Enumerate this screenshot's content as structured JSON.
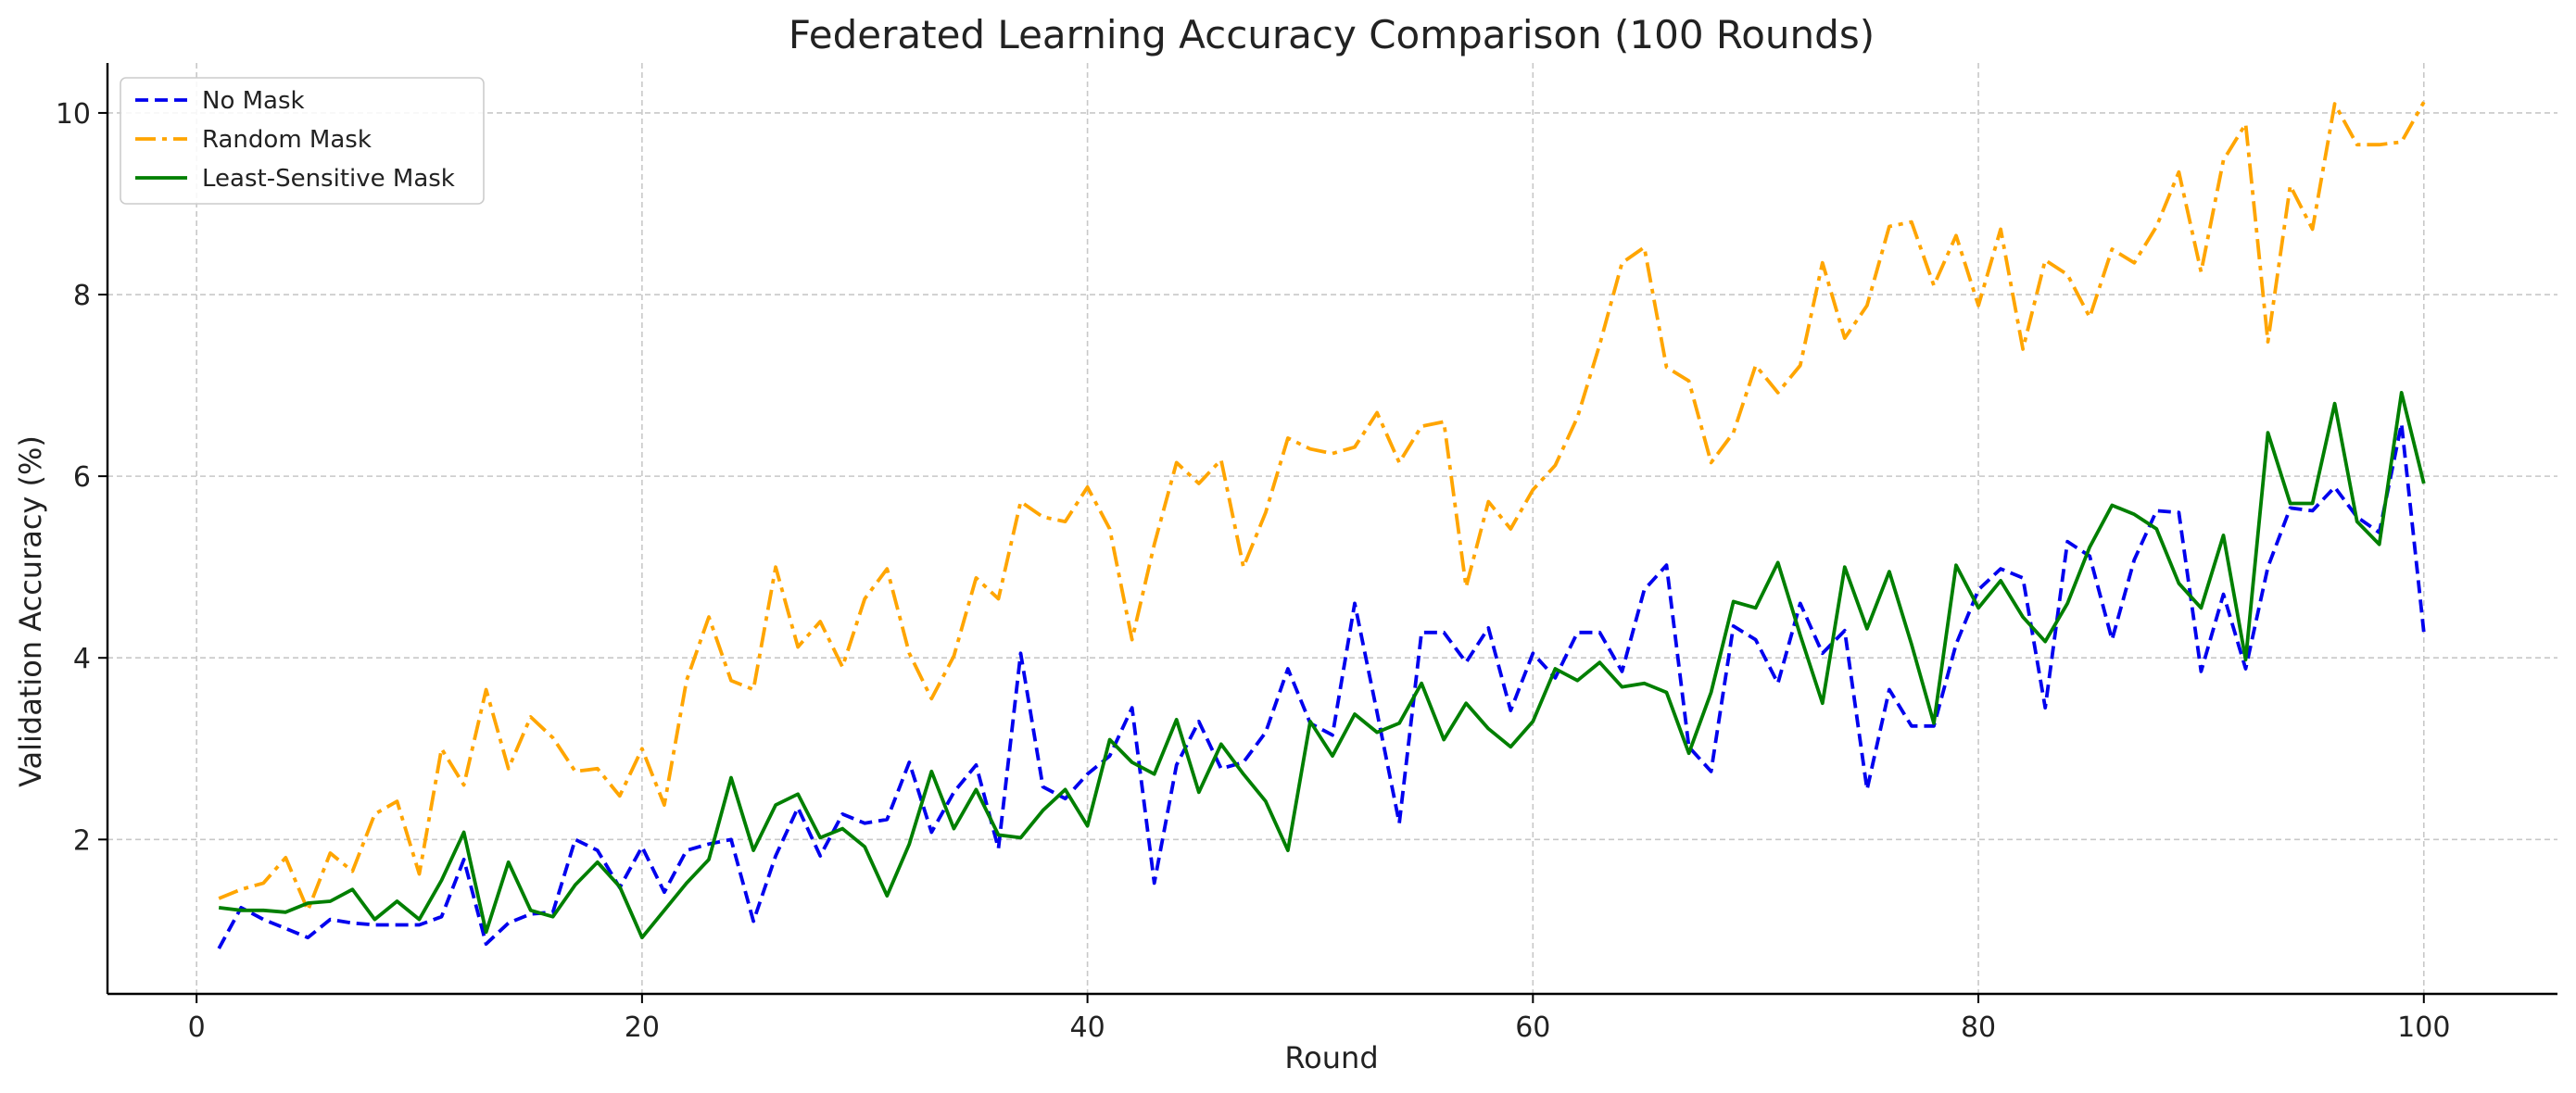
{
  "chart_data": {
    "type": "line",
    "title": "Federated Learning Accuracy Comparison (100 Rounds)",
    "xlabel": "Round",
    "ylabel": "Validation Accuracy (%)",
    "xlim": [
      -4,
      106
    ],
    "ylim": [
      0.3,
      10.55
    ],
    "xticks": [
      0,
      20,
      40,
      60,
      80,
      100
    ],
    "yticks": [
      2,
      4,
      6,
      8,
      10
    ],
    "grid": true,
    "legend_position": "top-left",
    "x": [
      1,
      2,
      3,
      4,
      5,
      6,
      7,
      8,
      9,
      10,
      11,
      12,
      13,
      14,
      15,
      16,
      17,
      18,
      19,
      20,
      21,
      22,
      23,
      24,
      25,
      26,
      27,
      28,
      29,
      30,
      31,
      32,
      33,
      34,
      35,
      36,
      37,
      38,
      39,
      40,
      41,
      42,
      43,
      44,
      45,
      46,
      47,
      48,
      49,
      50,
      51,
      52,
      53,
      54,
      55,
      56,
      57,
      58,
      59,
      60,
      61,
      62,
      63,
      64,
      65,
      66,
      67,
      68,
      69,
      70,
      71,
      72,
      73,
      74,
      75,
      76,
      77,
      78,
      79,
      80,
      81,
      82,
      83,
      84,
      85,
      86,
      87,
      88,
      89,
      90,
      91,
      92,
      93,
      94,
      95,
      96,
      97,
      98,
      99,
      100
    ],
    "series": [
      {
        "name": "No Mask",
        "color": "#0000ee",
        "style": "dashed",
        "values": [
          0.8,
          1.25,
          1.12,
          1.02,
          0.92,
          1.12,
          1.08,
          1.06,
          1.06,
          1.06,
          1.15,
          1.78,
          0.85,
          1.08,
          1.18,
          1.2,
          2.0,
          1.88,
          1.47,
          1.92,
          1.42,
          1.88,
          1.95,
          2.0,
          1.1,
          1.82,
          2.35,
          1.82,
          2.28,
          2.18,
          2.22,
          2.85,
          2.08,
          2.52,
          2.82,
          1.9,
          4.05,
          2.58,
          2.45,
          2.72,
          2.92,
          3.45,
          1.52,
          2.82,
          3.3,
          2.78,
          2.85,
          3.18,
          3.88,
          3.28,
          3.15,
          4.6,
          3.4,
          2.18,
          4.28,
          4.28,
          3.95,
          4.33,
          3.42,
          4.05,
          3.78,
          4.28,
          4.28,
          3.85,
          4.75,
          5.02,
          3.02,
          2.75,
          4.35,
          4.2,
          3.72,
          4.6,
          4.05,
          4.3,
          2.55,
          3.65,
          3.25,
          3.25,
          4.15,
          4.75,
          4.98,
          4.88,
          3.45,
          5.28,
          5.12,
          4.2,
          5.08,
          5.62,
          5.6,
          3.85,
          4.7,
          3.88,
          5.0,
          5.65,
          5.62,
          5.88,
          5.55,
          5.38,
          6.58,
          4.28
        ]
      },
      {
        "name": "Random Mask",
        "color": "#ffa500",
        "style": "dashdot",
        "values": [
          1.35,
          1.45,
          1.52,
          1.8,
          1.22,
          1.85,
          1.65,
          2.28,
          2.42,
          1.62,
          3.0,
          2.6,
          3.65,
          2.78,
          3.35,
          3.12,
          2.75,
          2.78,
          2.48,
          3.0,
          2.38,
          3.75,
          4.45,
          3.75,
          3.65,
          5.0,
          4.12,
          4.4,
          3.9,
          4.65,
          4.98,
          4.05,
          3.55,
          4.02,
          4.88,
          4.65,
          5.72,
          5.55,
          5.5,
          5.88,
          5.42,
          4.2,
          5.25,
          6.15,
          5.92,
          6.18,
          5.0,
          5.6,
          6.42,
          6.3,
          6.25,
          6.32,
          6.7,
          6.15,
          6.55,
          6.6,
          4.78,
          5.72,
          5.42,
          5.85,
          6.12,
          6.65,
          7.45,
          8.35,
          8.52,
          7.2,
          7.05,
          6.15,
          6.48,
          7.22,
          6.92,
          7.22,
          8.35,
          7.52,
          7.88,
          8.75,
          8.8,
          8.1,
          8.65,
          7.88,
          8.72,
          7.4,
          8.38,
          8.22,
          7.75,
          8.5,
          8.35,
          8.75,
          9.35,
          8.25,
          9.48,
          9.88,
          7.48,
          9.2,
          8.72,
          10.1,
          9.65,
          9.65,
          9.68,
          10.12
        ]
      },
      {
        "name": "Least-Sensitive Mask",
        "color": "#007f00",
        "style": "solid",
        "values": [
          1.25,
          1.22,
          1.22,
          1.2,
          1.3,
          1.32,
          1.45,
          1.12,
          1.32,
          1.12,
          1.55,
          2.08,
          0.98,
          1.75,
          1.22,
          1.15,
          1.5,
          1.75,
          1.48,
          0.92,
          1.22,
          1.52,
          1.78,
          2.68,
          1.88,
          2.38,
          2.5,
          2.02,
          2.12,
          1.92,
          1.38,
          1.95,
          2.75,
          2.12,
          2.55,
          2.05,
          2.02,
          2.32,
          2.55,
          2.15,
          3.1,
          2.85,
          2.72,
          3.32,
          2.52,
          3.05,
          2.72,
          2.42,
          1.88,
          3.3,
          2.92,
          3.38,
          3.18,
          3.28,
          3.72,
          3.1,
          3.5,
          3.22,
          3.02,
          3.3,
          3.88,
          3.75,
          3.95,
          3.68,
          3.72,
          3.62,
          2.95,
          3.62,
          4.62,
          4.55,
          5.05,
          4.25,
          3.5,
          5.0,
          4.32,
          4.95,
          4.15,
          3.28,
          5.02,
          4.55,
          4.85,
          4.45,
          4.18,
          4.6,
          5.22,
          5.68,
          5.58,
          5.42,
          4.82,
          4.55,
          5.35,
          3.98,
          6.48,
          5.7,
          5.7,
          6.8,
          5.5,
          5.25,
          6.92,
          5.92
        ]
      }
    ]
  }
}
